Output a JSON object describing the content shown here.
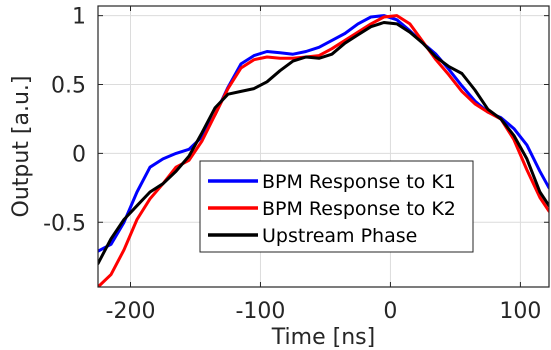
{
  "chart_data": {
    "type": "line",
    "title": "",
    "xlabel": "Time [ns]",
    "ylabel": "Output [a.u.]",
    "xlim": [
      -225,
      122
    ],
    "ylim": [
      -0.97,
      1.07
    ],
    "x_ticks": [
      -200,
      -100,
      0,
      100
    ],
    "x_tick_labels": [
      "-200",
      "-100",
      "0",
      "100"
    ],
    "y_ticks": [
      -0.5,
      0,
      0.5,
      1
    ],
    "y_tick_labels": [
      "-0.5",
      "0",
      "0.5",
      "1"
    ],
    "grid": true,
    "legend_position": "bottom-center",
    "series": [
      {
        "name": "BPM Response to K1",
        "color": "#0000ff",
        "x": [
          -225,
          -215,
          -205,
          -195,
          -185,
          -175,
          -165,
          -155,
          -145,
          -135,
          -125,
          -115,
          -105,
          -95,
          -85,
          -75,
          -65,
          -55,
          -45,
          -35,
          -25,
          -15,
          -5,
          5,
          15,
          25,
          35,
          45,
          55,
          65,
          75,
          85,
          95,
          105,
          115,
          122
        ],
        "y": [
          -0.71,
          -0.66,
          -0.5,
          -0.28,
          -0.1,
          -0.04,
          0.0,
          0.03,
          0.12,
          0.28,
          0.48,
          0.65,
          0.71,
          0.74,
          0.73,
          0.72,
          0.74,
          0.77,
          0.82,
          0.87,
          0.94,
          0.99,
          1.0,
          0.97,
          0.89,
          0.8,
          0.72,
          0.61,
          0.49,
          0.38,
          0.3,
          0.26,
          0.18,
          0.06,
          -0.13,
          -0.25
        ]
      },
      {
        "name": "BPM Response to K2",
        "color": "#ff0000",
        "x": [
          -225,
          -215,
          -205,
          -195,
          -185,
          -175,
          -165,
          -155,
          -145,
          -135,
          -125,
          -115,
          -105,
          -95,
          -85,
          -75,
          -65,
          -55,
          -45,
          -35,
          -25,
          -15,
          -5,
          5,
          15,
          25,
          35,
          45,
          55,
          65,
          75,
          85,
          95,
          105,
          115,
          122
        ],
        "y": [
          -0.97,
          -0.88,
          -0.7,
          -0.48,
          -0.33,
          -0.22,
          -0.1,
          -0.05,
          0.09,
          0.28,
          0.47,
          0.62,
          0.68,
          0.7,
          0.69,
          0.69,
          0.7,
          0.71,
          0.76,
          0.82,
          0.88,
          0.94,
          0.99,
          1.0,
          0.94,
          0.81,
          0.68,
          0.57,
          0.45,
          0.36,
          0.3,
          0.25,
          0.1,
          -0.12,
          -0.32,
          -0.42
        ]
      },
      {
        "name": "Upstream Phase",
        "color": "#000000",
        "x": [
          -225,
          -215,
          -205,
          -195,
          -185,
          -175,
          -165,
          -155,
          -145,
          -135,
          -125,
          -115,
          -105,
          -95,
          -85,
          -75,
          -65,
          -55,
          -45,
          -35,
          -25,
          -15,
          -5,
          5,
          15,
          25,
          35,
          45,
          55,
          65,
          75,
          85,
          95,
          105,
          115,
          122
        ],
        "y": [
          -0.8,
          -0.62,
          -0.48,
          -0.38,
          -0.28,
          -0.22,
          -0.13,
          -0.02,
          0.15,
          0.33,
          0.43,
          0.45,
          0.47,
          0.52,
          0.6,
          0.67,
          0.7,
          0.69,
          0.72,
          0.8,
          0.86,
          0.92,
          0.95,
          0.94,
          0.88,
          0.8,
          0.7,
          0.63,
          0.58,
          0.46,
          0.32,
          0.25,
          0.13,
          -0.04,
          -0.28,
          -0.38
        ]
      }
    ]
  }
}
